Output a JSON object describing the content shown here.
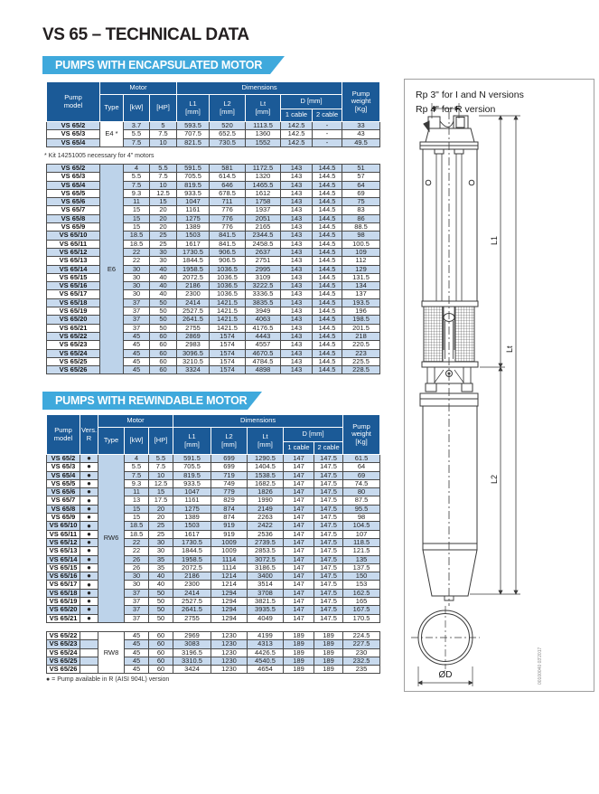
{
  "title": "VS 65 – TECHNICAL DATA",
  "colors": {
    "header_blue": "#1b5a97",
    "banner_blue": "#3fa9dc",
    "row_shade": "#c8daee",
    "type_cell_blue": "#bdd3ea",
    "grid_border": "#4a4a4a"
  },
  "table_headers": {
    "pump_model": "Pump\nmodel",
    "vers": "Vers.\nR",
    "motor": "Motor",
    "dimensions": "Dimensions",
    "type": "Type",
    "kw": "[kW]",
    "hp": "[HP]",
    "l1": "L1\n[mm]",
    "l2": "L2\n[mm]",
    "lt": "Lt\n[mm]",
    "d": "D [mm]",
    "cable1": "1 cable",
    "cable2": "2 cable",
    "weight": "Pump weight\n[Kg]"
  },
  "section1": {
    "banner": "PUMPS WITH ENCAPSULATED MOTOR",
    "type_e4": "E4 *",
    "type_e6": "E6",
    "footnote": "* Kit 14251005 necessary for 4\" motors"
  },
  "section2": {
    "banner": "PUMPS WITH REWINDABLE MOTOR",
    "type_rw6": "RW6",
    "type_rw8": "RW8",
    "dot_symbol": "●",
    "footnote": "● = Pump available in R (AISI 904L) version"
  },
  "rows_e4": [
    [
      "VS 65/2",
      "3.7",
      "5",
      "593.5",
      "520",
      "1113.5",
      "142.5",
      "-",
      "33"
    ],
    [
      "VS 65/3",
      "5.5",
      "7.5",
      "707.5",
      "652.5",
      "1360",
      "142.5",
      "-",
      "43"
    ],
    [
      "VS 65/4",
      "7.5",
      "10",
      "821.5",
      "730.5",
      "1552",
      "142.5",
      "-",
      "49.5"
    ]
  ],
  "rows_e6": [
    [
      "VS 65/2",
      "4",
      "5.5",
      "591.5",
      "581",
      "1172.5",
      "143",
      "144.5",
      "51"
    ],
    [
      "VS 65/3",
      "5.5",
      "7.5",
      "705.5",
      "614.5",
      "1320",
      "143",
      "144.5",
      "57"
    ],
    [
      "VS 65/4",
      "7.5",
      "10",
      "819.5",
      "646",
      "1465.5",
      "143",
      "144.5",
      "64"
    ],
    [
      "VS 65/5",
      "9.3",
      "12.5",
      "933.5",
      "678.5",
      "1612",
      "143",
      "144.5",
      "69"
    ],
    [
      "VS 65/6",
      "11",
      "15",
      "1047",
      "711",
      "1758",
      "143",
      "144.5",
      "75"
    ],
    [
      "VS 65/7",
      "15",
      "20",
      "1161",
      "776",
      "1937",
      "143",
      "144.5",
      "83"
    ],
    [
      "VS 65/8",
      "15",
      "20",
      "1275",
      "776",
      "2051",
      "143",
      "144.5",
      "86"
    ],
    [
      "VS 65/9",
      "15",
      "20",
      "1389",
      "776",
      "2165",
      "143",
      "144.5",
      "88.5"
    ],
    [
      "VS 65/10",
      "18.5",
      "25",
      "1503",
      "841.5",
      "2344.5",
      "143",
      "144.5",
      "98"
    ],
    [
      "VS 65/11",
      "18.5",
      "25",
      "1617",
      "841.5",
      "2458.5",
      "143",
      "144.5",
      "100.5"
    ],
    [
      "VS 65/12",
      "22",
      "30",
      "1730.5",
      "906.5",
      "2637",
      "143",
      "144.5",
      "109"
    ],
    [
      "VS 65/13",
      "22",
      "30",
      "1844.5",
      "906.5",
      "2751",
      "143",
      "144.5",
      "112"
    ],
    [
      "VS 65/14",
      "30",
      "40",
      "1958.5",
      "1036.5",
      "2995",
      "143",
      "144.5",
      "129"
    ],
    [
      "VS 65/15",
      "30",
      "40",
      "2072.5",
      "1036.5",
      "3109",
      "143",
      "144.5",
      "131.5"
    ],
    [
      "VS 65/16",
      "30",
      "40",
      "2186",
      "1036.5",
      "3222.5",
      "143",
      "144.5",
      "134"
    ],
    [
      "VS 65/17",
      "30",
      "40",
      "2300",
      "1036.5",
      "3336.5",
      "143",
      "144.5",
      "137"
    ],
    [
      "VS 65/18",
      "37",
      "50",
      "2414",
      "1421.5",
      "3835.5",
      "143",
      "144.5",
      "193.5"
    ],
    [
      "VS 65/19",
      "37",
      "50",
      "2527.5",
      "1421.5",
      "3949",
      "143",
      "144.5",
      "196"
    ],
    [
      "VS 65/20",
      "37",
      "50",
      "2641.5",
      "1421.5",
      "4063",
      "143",
      "144.5",
      "198.5"
    ],
    [
      "VS 65/21",
      "37",
      "50",
      "2755",
      "1421.5",
      "4176.5",
      "143",
      "144.5",
      "201.5"
    ],
    [
      "VS 65/22",
      "45",
      "60",
      "2869",
      "1574",
      "4443",
      "143",
      "144.5",
      "218"
    ],
    [
      "VS 65/23",
      "45",
      "60",
      "2983",
      "1574",
      "4557",
      "143",
      "144.5",
      "220.5"
    ],
    [
      "VS 65/24",
      "45",
      "60",
      "3096.5",
      "1574",
      "4670.5",
      "143",
      "144.5",
      "223"
    ],
    [
      "VS 65/25",
      "45",
      "60",
      "3210.5",
      "1574",
      "4784.5",
      "143",
      "144.5",
      "225.5"
    ],
    [
      "VS 65/26",
      "45",
      "60",
      "3324",
      "1574",
      "4898",
      "143",
      "144.5",
      "228.5"
    ]
  ],
  "rows_rw6": [
    [
      "VS 65/2",
      "4",
      "5.5",
      "591.5",
      "699",
      "1290.5",
      "147",
      "147.5",
      "61.5"
    ],
    [
      "VS 65/3",
      "5.5",
      "7.5",
      "705.5",
      "699",
      "1404.5",
      "147",
      "147.5",
      "64"
    ],
    [
      "VS 65/4",
      "7.5",
      "10",
      "819.5",
      "719",
      "1538.5",
      "147",
      "147.5",
      "69"
    ],
    [
      "VS 65/5",
      "9.3",
      "12.5",
      "933.5",
      "749",
      "1682.5",
      "147",
      "147.5",
      "74.5"
    ],
    [
      "VS 65/6",
      "11",
      "15",
      "1047",
      "779",
      "1826",
      "147",
      "147.5",
      "80"
    ],
    [
      "VS 65/7",
      "13",
      "17.5",
      "1161",
      "829",
      "1990",
      "147",
      "147.5",
      "87.5"
    ],
    [
      "VS 65/8",
      "15",
      "20",
      "1275",
      "874",
      "2149",
      "147",
      "147.5",
      "95.5"
    ],
    [
      "VS 65/9",
      "15",
      "20",
      "1389",
      "874",
      "2263",
      "147",
      "147.5",
      "98"
    ],
    [
      "VS 65/10",
      "18.5",
      "25",
      "1503",
      "919",
      "2422",
      "147",
      "147.5",
      "104.5"
    ],
    [
      "VS 65/11",
      "18.5",
      "25",
      "1617",
      "919",
      "2536",
      "147",
      "147.5",
      "107"
    ],
    [
      "VS 65/12",
      "22",
      "30",
      "1730.5",
      "1009",
      "2739.5",
      "147",
      "147.5",
      "118.5"
    ],
    [
      "VS 65/13",
      "22",
      "30",
      "1844.5",
      "1009",
      "2853.5",
      "147",
      "147.5",
      "121.5"
    ],
    [
      "VS 65/14",
      "26",
      "35",
      "1958.5",
      "1114",
      "3072.5",
      "147",
      "147.5",
      "135"
    ],
    [
      "VS 65/15",
      "26",
      "35",
      "2072.5",
      "1114",
      "3186.5",
      "147",
      "147.5",
      "137.5"
    ],
    [
      "VS 65/16",
      "30",
      "40",
      "2186",
      "1214",
      "3400",
      "147",
      "147.5",
      "150"
    ],
    [
      "VS 65/17",
      "30",
      "40",
      "2300",
      "1214",
      "3514",
      "147",
      "147.5",
      "153"
    ],
    [
      "VS 65/18",
      "37",
      "50",
      "2414",
      "1294",
      "3708",
      "147",
      "147.5",
      "162.5"
    ],
    [
      "VS 65/19",
      "37",
      "50",
      "2527.5",
      "1294",
      "3821.5",
      "147",
      "147.5",
      "165"
    ],
    [
      "VS 65/20",
      "37",
      "50",
      "2641.5",
      "1294",
      "3935.5",
      "147",
      "147.5",
      "167.5"
    ],
    [
      "VS 65/21",
      "37",
      "50",
      "2755",
      "1294",
      "4049",
      "147",
      "147.5",
      "170.5"
    ]
  ],
  "rows_rw8": [
    [
      "VS 65/22",
      "45",
      "60",
      "2969",
      "1230",
      "4199",
      "189",
      "189",
      "224.5"
    ],
    [
      "VS 65/23",
      "45",
      "60",
      "3083",
      "1230",
      "4313",
      "189",
      "189",
      "227.5"
    ],
    [
      "VS 65/24",
      "45",
      "60",
      "3196.5",
      "1230",
      "4426.5",
      "189",
      "189",
      "230"
    ],
    [
      "VS 65/25",
      "45",
      "60",
      "3310.5",
      "1230",
      "4540.5",
      "189",
      "189",
      "232.5"
    ],
    [
      "VS 65/26",
      "45",
      "60",
      "3424",
      "1230",
      "4654",
      "189",
      "189",
      "235"
    ]
  ],
  "drawing": {
    "note1": "Rp 3\" for I and N versions",
    "note2": "Rp 4\" for R version",
    "l1": "L1",
    "l2": "L2",
    "lt": "Lt",
    "od": "ØD",
    "code": "00100040  03'2017"
  }
}
